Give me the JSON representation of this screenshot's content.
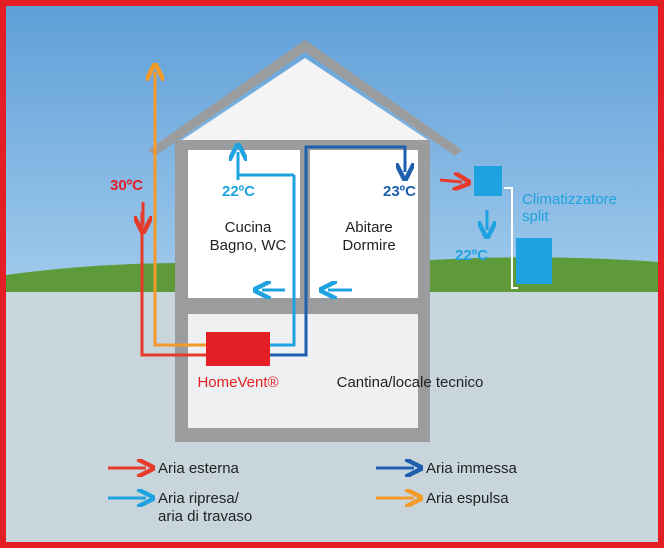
{
  "temperatures": {
    "outdoor": "30ºC",
    "kitchen_supply": "22ºC",
    "living_supply": "23ºC",
    "split_output": "22ºC"
  },
  "rooms": {
    "left_line1": "Cucina",
    "left_line2": "Bagno, WC",
    "right_line1": "Abitare",
    "right_line2": "Dormire",
    "basement": "Cantina/locale tecnico"
  },
  "devices": {
    "homevent": "HomeVent®",
    "split_line1": "Climatizzatore",
    "split_line2": "split"
  },
  "legend": [
    {
      "line1": "Aria esterna"
    },
    {
      "line1": "Aria ripresa/",
      "line2": "aria di travaso"
    },
    {
      "line1": "Aria immessa"
    },
    {
      "line1": "Aria espulsa"
    }
  ]
}
